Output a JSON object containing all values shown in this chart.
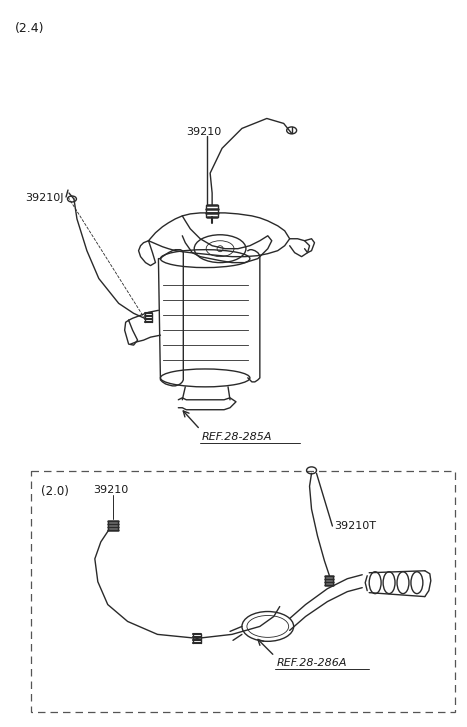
{
  "background_color": "#ffffff",
  "fig_width": 4.67,
  "fig_height": 7.27,
  "dpi": 100,
  "title_24": "(2.4)",
  "title_20": "(2.0)",
  "label_39210": "39210",
  "label_39210J": "39210J",
  "label_39210T": "39210T",
  "label_ref285": "REF.28-285A",
  "label_ref286": "REF.28-286A",
  "line_color": "#2a2a2a",
  "dashed_box_color": "#444444",
  "text_color": "#1a1a1a",
  "line_width": 1.0,
  "thin_line": 0.6
}
